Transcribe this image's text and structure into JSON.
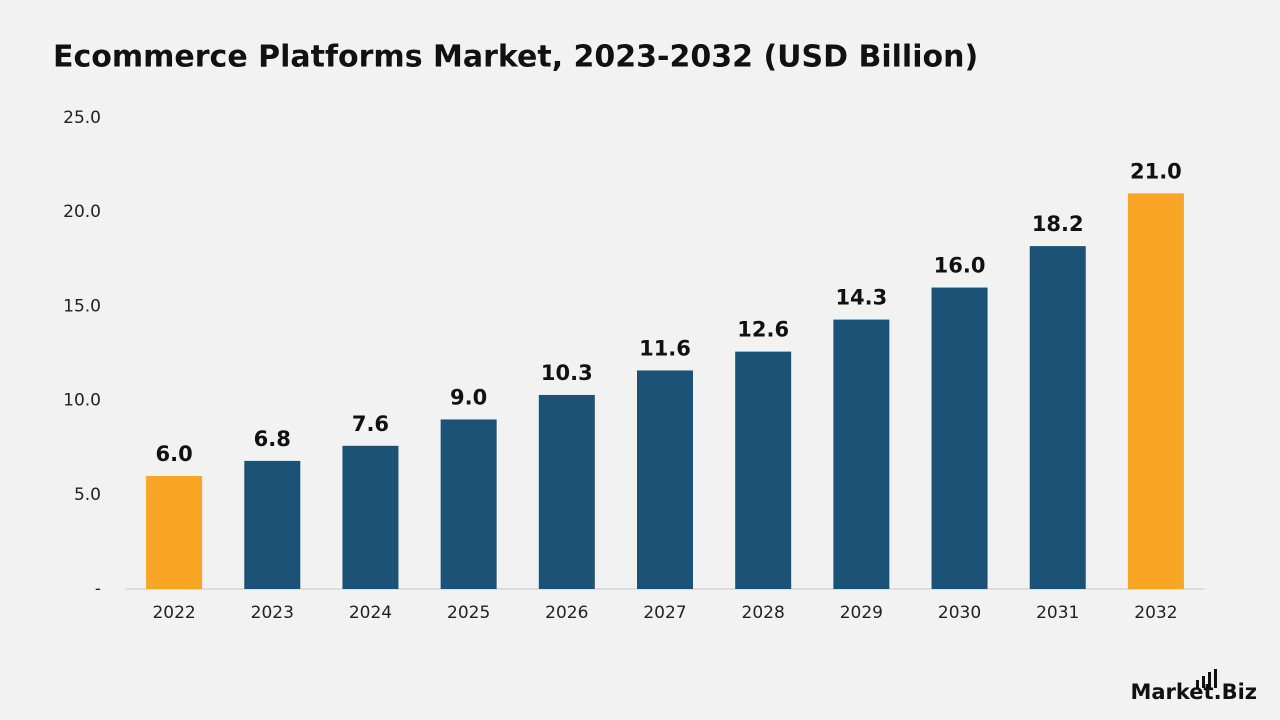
{
  "chart_data": {
    "type": "bar",
    "title": "Ecommerce Platforms Market, 2023-2032 (USD Billion)",
    "categories": [
      "2022",
      "2023",
      "2024",
      "2025",
      "2026",
      "2027",
      "2028",
      "2029",
      "2030",
      "2031",
      "2032"
    ],
    "values": [
      6.0,
      6.8,
      7.6,
      9.0,
      10.3,
      11.6,
      12.6,
      14.3,
      16.0,
      18.2,
      21.0
    ],
    "value_labels": [
      "6.0",
      "6.8",
      "7.6",
      "9.0",
      "10.3",
      "11.6",
      "12.6",
      "14.3",
      "16.0",
      "18.2",
      "21.0"
    ],
    "colors": [
      "#f9a526",
      "#1b5276",
      "#1b5276",
      "#1b5276",
      "#1b5276",
      "#1b5276",
      "#1b5276",
      "#1b5276",
      "#1b5276",
      "#1b5276",
      "#f9a526"
    ],
    "ylim": [
      0,
      25
    ],
    "yticks": [
      {
        "value": 0,
        "label": "-"
      },
      {
        "value": 5,
        "label": "5.0"
      },
      {
        "value": 10,
        "label": "10.0"
      },
      {
        "value": 15,
        "label": "15.0"
      },
      {
        "value": 20,
        "label": "20.0"
      },
      {
        "value": 25,
        "label": "25.0"
      }
    ],
    "grid": false
  },
  "brand": "Market.Biz"
}
